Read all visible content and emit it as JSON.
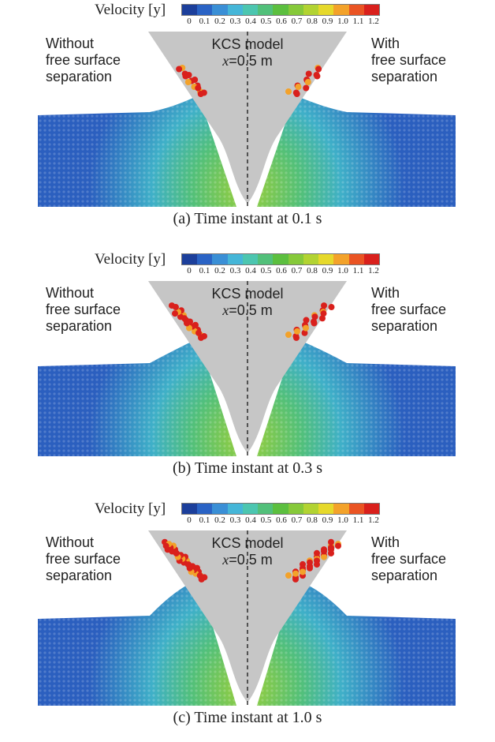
{
  "panels": [
    {
      "caption": "(a) Time instant at 0.1 s",
      "velocity_label": "Velocity [y]",
      "left_label": [
        "Without",
        "free surface",
        "separation"
      ],
      "right_label": [
        "With",
        "free surface",
        "separation"
      ],
      "model_name": "KCS model",
      "model_x_var": "x",
      "model_x_value": "=0.5 m",
      "spray_level": "low"
    },
    {
      "caption": "(b) Time instant at 0.3 s",
      "velocity_label": "Velocity [y]",
      "left_label": [
        "Without",
        "free surface",
        "separation"
      ],
      "right_label": [
        "With",
        "free surface",
        "separation"
      ],
      "model_name": "KCS model",
      "model_x_var": "x",
      "model_x_value": "=0.5 m",
      "spray_level": "medium"
    },
    {
      "caption": "(c) Time instant at 1.0 s",
      "velocity_label": "Velocity [y]",
      "left_label": [
        "Without",
        "free surface",
        "separation"
      ],
      "right_label": [
        "With",
        "free surface",
        "separation"
      ],
      "model_name": "KCS model",
      "model_x_var": "x",
      "model_x_value": "=0.5 m",
      "spray_level": "high"
    }
  ],
  "colorbar": {
    "ticks": [
      "0",
      "0.1",
      "0.2",
      "0.3",
      "0.4",
      "0.5",
      "0.6",
      "0.7",
      "0.8",
      "0.9",
      "1.0",
      "1.1",
      "1.2"
    ],
    "colors": [
      "#1c3f9b",
      "#2a63c5",
      "#3a8fd6",
      "#45b6d8",
      "#4cc6b0",
      "#52c07a",
      "#5cbf3f",
      "#86c93a",
      "#b2d332",
      "#e6d92b",
      "#f3a22a",
      "#ea5423",
      "#d9201c"
    ]
  },
  "colors": {
    "hull": "#c6c6c6",
    "water_deep": "#2b5fbf",
    "water_mid": "#3fb0c8",
    "water_near": "#52c07a",
    "water_fast": "#9ccf36",
    "spray": "#d9201c"
  }
}
